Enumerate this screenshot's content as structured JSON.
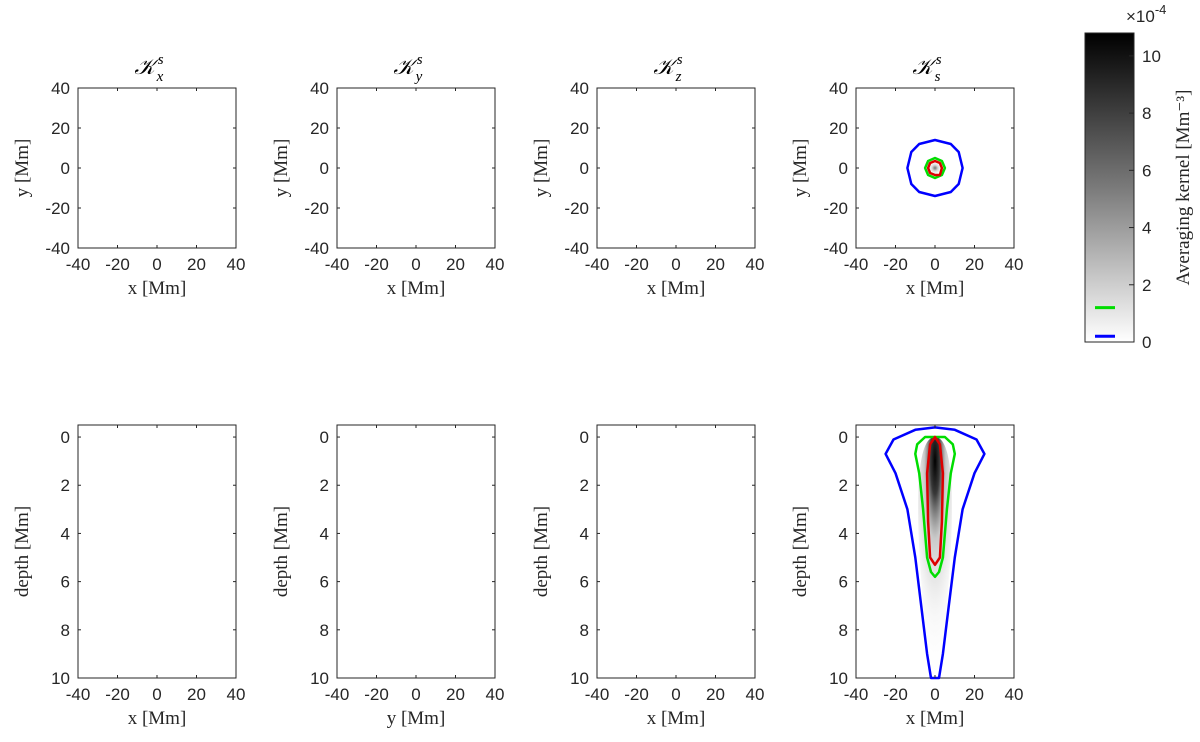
{
  "chart_data": [
    {
      "type": "heatmap",
      "title": "𝒦",
      "title_sub": "x",
      "title_sup": "s",
      "xlabel": "x [Mm]",
      "ylabel": "y [Mm]",
      "xlim": [
        -40,
        40
      ],
      "ylim": [
        -40,
        40
      ],
      "xticks": [
        "-40",
        "-20",
        "0",
        "20",
        "40"
      ],
      "yticks": [
        "40",
        "20",
        "0",
        "-20",
        "-40"
      ],
      "contours": []
    },
    {
      "type": "heatmap",
      "title": "𝒦",
      "title_sub": "y",
      "title_sup": "s",
      "xlabel": "x [Mm]",
      "ylabel": "y [Mm]",
      "xlim": [
        -40,
        40
      ],
      "ylim": [
        -40,
        40
      ],
      "xticks": [
        "-40",
        "-20",
        "0",
        "20",
        "40"
      ],
      "yticks": [
        "40",
        "20",
        "0",
        "-20",
        "-40"
      ],
      "contours": []
    },
    {
      "type": "heatmap",
      "title": "𝒦",
      "title_sub": "z",
      "title_sup": "s",
      "xlabel": "x [Mm]",
      "ylabel": "y [Mm]",
      "xlim": [
        -40,
        40
      ],
      "ylim": [
        -40,
        40
      ],
      "xticks": [
        "-40",
        "-20",
        "0",
        "20",
        "40"
      ],
      "yticks": [
        "40",
        "20",
        "0",
        "-20",
        "-40"
      ],
      "contours": []
    },
    {
      "type": "heatmap",
      "title": "𝒦",
      "title_sub": "s",
      "title_sup": "s",
      "xlabel": "x [Mm]",
      "ylabel": "y [Mm]",
      "xlim": [
        -40,
        40
      ],
      "ylim": [
        -40,
        40
      ],
      "xticks": [
        "-40",
        "-20",
        "0",
        "20",
        "40"
      ],
      "yticks": [
        "40",
        "20",
        "0",
        "-20",
        "-40"
      ],
      "contours": [
        {
          "color": "#0000ff",
          "points": [
            [
              14,
              0
            ],
            [
              12,
              8
            ],
            [
              8,
              12
            ],
            [
              0,
              14
            ],
            [
              -8,
              12
            ],
            [
              -12,
              8
            ],
            [
              -14,
              0
            ],
            [
              -12,
              -8
            ],
            [
              -8,
              -12
            ],
            [
              0,
              -14
            ],
            [
              8,
              -12
            ],
            [
              12,
              -8
            ]
          ]
        },
        {
          "color": "#00dd00",
          "points": [
            [
              5,
              0
            ],
            [
              3.5,
              3.5
            ],
            [
              0,
              5
            ],
            [
              -3.5,
              3.5
            ],
            [
              -5,
              0
            ],
            [
              -3.5,
              -3.5
            ],
            [
              0,
              -5
            ],
            [
              3.5,
              -3.5
            ]
          ]
        },
        {
          "color": "#dd0000",
          "points": [
            [
              3.5,
              0
            ],
            [
              2.5,
              2.5
            ],
            [
              0,
              3.5
            ],
            [
              -2.5,
              2.5
            ],
            [
              -3.5,
              0
            ],
            [
              -2.5,
              -2.5
            ],
            [
              0,
              -3.5
            ],
            [
              2.5,
              -3.5
            ]
          ]
        }
      ]
    },
    {
      "type": "heatmap",
      "title": "",
      "xlabel": "x [Mm]",
      "ylabel": "depth [Mm]",
      "xlim": [
        -40,
        40
      ],
      "ylim": [
        10,
        -0.5
      ],
      "xticks": [
        "-40",
        "-20",
        "0",
        "20",
        "40"
      ],
      "yticks": [
        "0",
        "2",
        "4",
        "6",
        "8",
        "10"
      ],
      "contours": []
    },
    {
      "type": "heatmap",
      "title": "",
      "xlabel": "y [Mm]",
      "ylabel": "depth [Mm]",
      "xlim": [
        -40,
        40
      ],
      "ylim": [
        10,
        -0.5
      ],
      "xticks": [
        "-40",
        "-20",
        "0",
        "20",
        "40"
      ],
      "yticks": [
        "0",
        "2",
        "4",
        "6",
        "8",
        "10"
      ],
      "contours": []
    },
    {
      "type": "heatmap",
      "title": "",
      "xlabel": "x [Mm]",
      "ylabel": "depth [Mm]",
      "xlim": [
        -40,
        40
      ],
      "ylim": [
        10,
        -0.5
      ],
      "xticks": [
        "-40",
        "-20",
        "0",
        "20",
        "40"
      ],
      "yticks": [
        "0",
        "2",
        "4",
        "6",
        "8",
        "10"
      ],
      "contours": []
    },
    {
      "type": "heatmap",
      "title": "",
      "xlabel": "x [Mm]",
      "ylabel": "depth [Mm]",
      "xlim": [
        -40,
        40
      ],
      "ylim": [
        10,
        -0.5
      ],
      "xticks": [
        "-40",
        "-20",
        "0",
        "20",
        "40"
      ],
      "yticks": [
        "0",
        "2",
        "4",
        "6",
        "8",
        "10"
      ],
      "contours": [
        {
          "color": "#0000ff",
          "points": [
            [
              0,
              -0.4
            ],
            [
              10,
              -0.3
            ],
            [
              21,
              0.1
            ],
            [
              25,
              0.7
            ],
            [
              20,
              1.5
            ],
            [
              14,
              3
            ],
            [
              10,
              5
            ],
            [
              7,
              7
            ],
            [
              4,
              9
            ],
            [
              2,
              10
            ],
            [
              -2,
              10
            ],
            [
              -4,
              9
            ],
            [
              -7,
              7
            ],
            [
              -10,
              5
            ],
            [
              -14,
              3
            ],
            [
              -20,
              1.5
            ],
            [
              -25,
              0.7
            ],
            [
              -21,
              0.1
            ],
            [
              -10,
              -0.3
            ]
          ]
        },
        {
          "color": "#00dd00",
          "points": [
            [
              0,
              0
            ],
            [
              5,
              0
            ],
            [
              9,
              0.3
            ],
            [
              10,
              0.7
            ],
            [
              8,
              1.5
            ],
            [
              6,
              3
            ],
            [
              4,
              5
            ],
            [
              2,
              5.6
            ],
            [
              0,
              5.8
            ],
            [
              -2,
              5.6
            ],
            [
              -4,
              5
            ],
            [
              -6,
              3
            ],
            [
              -8,
              1.5
            ],
            [
              -10,
              0.7
            ],
            [
              -9,
              0.3
            ],
            [
              -5,
              0
            ]
          ]
        },
        {
          "color": "#dd0000",
          "points": [
            [
              0,
              0
            ],
            [
              2.5,
              0.3
            ],
            [
              4,
              1.5
            ],
            [
              3.5,
              3.5
            ],
            [
              2.5,
              5
            ],
            [
              0,
              5.3
            ],
            [
              -2.5,
              5
            ],
            [
              -3.5,
              3.5
            ],
            [
              -4,
              1.5
            ],
            [
              -2.5,
              0.3
            ]
          ]
        }
      ]
    }
  ],
  "colorbar": {
    "label": "Averaging kernel [Mm⁻³]",
    "exponent": "×10",
    "exponent_power": "-4",
    "ticks": [
      "10",
      "8",
      "6",
      "4",
      "2",
      "0"
    ],
    "range": [
      0,
      10.8
    ],
    "levels": [
      {
        "value": 1.2,
        "color": "#00dd00"
      },
      {
        "value": 0.2,
        "color": "#0000ff"
      }
    ]
  }
}
